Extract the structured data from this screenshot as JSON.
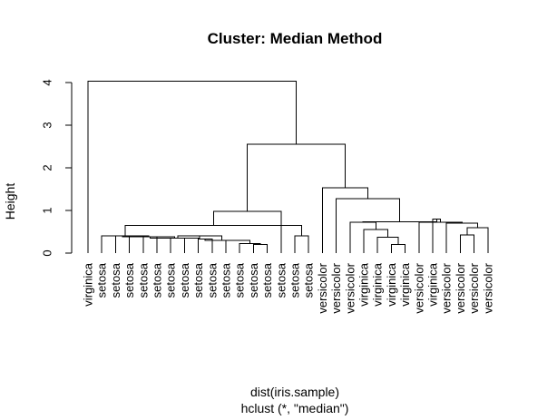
{
  "chart_data": {
    "type": "dendrogram",
    "title": "Cluster: Median Method",
    "ylabel": "Height",
    "xlabel": "dist(iris.sample)",
    "sub": "hclust (*, \"median\")",
    "ylim": [
      0,
      4
    ],
    "yticks": [
      0,
      1,
      2,
      3,
      4
    ],
    "ytick_labels": [
      "0",
      "1",
      "2",
      "3",
      "4"
    ],
    "labels": [
      "virginica",
      "setosa",
      "setosa",
      "setosa",
      "setosa",
      "setosa",
      "setosa",
      "setosa",
      "setosa",
      "setosa",
      "setosa",
      "setosa",
      "setosa",
      "setosa",
      "setosa",
      "setosa",
      "setosa",
      "versicolor",
      "versicolor",
      "versicolor",
      "virginica",
      "virginica",
      "virginica",
      "virginica",
      "versicolor",
      "virginica",
      "versicolor",
      "versicolor",
      "versicolor",
      "versicolor"
    ],
    "merges": [
      {
        "left": -13,
        "right": -14,
        "height": 0.2
      },
      {
        "left": -12,
        "right": 1,
        "height": 0.22
      },
      {
        "left": -11,
        "right": 2,
        "height": 0.3
      },
      {
        "left": -9,
        "right": -10,
        "height": 0.33
      },
      {
        "left": -7,
        "right": -8,
        "height": 0.35
      },
      {
        "left": 4,
        "right": 3,
        "height": 0.3
      },
      {
        "left": -5,
        "right": -6,
        "height": 0.38
      },
      {
        "left": 5,
        "right": 6,
        "height": 0.4
      },
      {
        "left": 7,
        "right": 8,
        "height": 0.35
      },
      {
        "left": -3,
        "right": -4,
        "height": 0.4
      },
      {
        "left": 10,
        "right": 9,
        "height": 0.38
      },
      {
        "left": -2,
        "right": 11,
        "height": 0.4
      },
      {
        "left": -16,
        "right": -17,
        "height": 0.4
      },
      {
        "left": 12,
        "right": 13,
        "height": 0.65
      },
      {
        "left": 14,
        "right": -15,
        "height": 0.98
      },
      {
        "left": -23,
        "right": -24,
        "height": 0.2
      },
      {
        "left": -22,
        "right": 16,
        "height": 0.37
      },
      {
        "left": -21,
        "right": 17,
        "height": 0.55
      },
      {
        "left": -28,
        "right": -29,
        "height": 0.43
      },
      {
        "left": 19,
        "right": -30,
        "height": 0.6
      },
      {
        "left": 20,
        "right": -27,
        "height": 0.7
      },
      {
        "left": 21,
        "right": -25,
        "height": 0.72
      },
      {
        "left": -26,
        "right": 22,
        "height": 0.8
      },
      {
        "left": 18,
        "right": -20,
        "height": 0.72
      },
      {
        "left": 23,
        "right": 24,
        "height": 0.73
      },
      {
        "left": 25,
        "right": -19,
        "height": 1.28
      },
      {
        "left": 26,
        "right": -18,
        "height": 1.53
      },
      {
        "left": 15,
        "right": 27,
        "height": 2.55
      },
      {
        "left": -1,
        "right": 28,
        "height": 4.03
      }
    ]
  }
}
